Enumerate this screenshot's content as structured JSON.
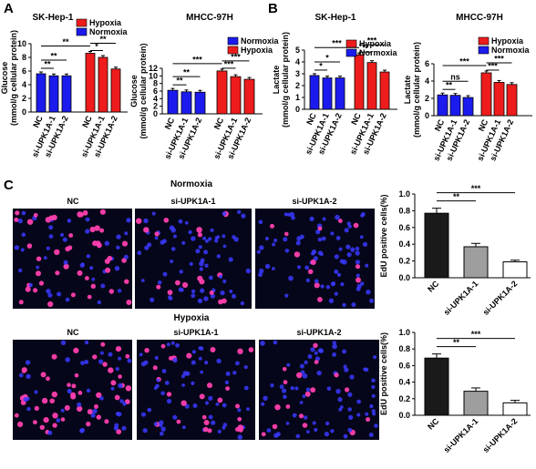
{
  "panels": {
    "a": "A",
    "b": "B",
    "c": "C"
  },
  "colors": {
    "hypoxia": "#ee1c1c",
    "normoxia": "#1b1bee",
    "nc_bar": "#1a1a1a",
    "kd1_bar": "#9e9e9e",
    "kd2_bar": "#ffffff",
    "cell_bg": "#06061a"
  },
  "chart_data": [
    {
      "type": "bar",
      "id": "a1",
      "title": "SK-Hep-1",
      "ylabel": "Glucose (mmol/g cellular protein)",
      "categories": [
        "NC",
        "si-UPK1A-1",
        "si-UPK1A-2"
      ],
      "ylim": [
        0,
        10
      ],
      "yticks": [
        "0",
        "2",
        "4",
        "6",
        "8",
        "10"
      ],
      "legend": [
        "Hypoxia",
        "Normoxia"
      ],
      "series": [
        {
          "name": "Normoxia",
          "values": [
            5.6,
            5.3,
            5.3
          ]
        },
        {
          "name": "Hypoxia",
          "values": [
            8.6,
            8.0,
            6.3
          ]
        }
      ],
      "significance": [
        "**",
        "**",
        "**",
        "*",
        "**"
      ]
    },
    {
      "type": "bar",
      "id": "a2",
      "title": "MHCC-97H",
      "ylabel": "Glucose (mmol/g cellular protein)",
      "categories": [
        "NC",
        "si-UPK1A-1",
        "si-UPK1A-2"
      ],
      "ylim": [
        0,
        12
      ],
      "yticks": [
        "0",
        "2",
        "4",
        "6",
        "8",
        "10",
        "12"
      ],
      "legend": [
        "Normoxia",
        "Hypoxia"
      ],
      "series": [
        {
          "name": "Normoxia",
          "values": [
            6.2,
            5.8,
            5.7
          ]
        },
        {
          "name": "Hypoxia",
          "values": [
            11.3,
            9.8,
            9.1
          ]
        }
      ],
      "significance": [
        "***",
        "**",
        "**",
        "***",
        "***"
      ]
    },
    {
      "type": "bar",
      "id": "b1",
      "title": "SK-Hep-1",
      "ylabel": "Lactate (mmol/g cellular protein)",
      "categories": [
        "NC",
        "si-UPK1A-1",
        "si-UPK1A-2"
      ],
      "ylim": [
        0,
        5
      ],
      "yticks": [
        "0",
        "1",
        "2",
        "3",
        "4",
        "5"
      ],
      "legend": [
        "Hypoxia",
        "Normoxia"
      ],
      "series": [
        {
          "name": "Normoxia",
          "values": [
            2.85,
            2.65,
            2.65
          ]
        },
        {
          "name": "Hypoxia",
          "values": [
            4.6,
            3.95,
            3.15
          ]
        }
      ],
      "significance": [
        "***",
        "*",
        "*",
        "**",
        "***"
      ]
    },
    {
      "type": "bar",
      "id": "b2",
      "title": "MHCC-97H",
      "ylabel": "Lactate (mmol/g cellular protein)",
      "categories": [
        "NC",
        "si-UPK1A-1",
        "si-UPK1A-2"
      ],
      "ylim": [
        0,
        6
      ],
      "yticks": [
        "0",
        "2",
        "4",
        "6"
      ],
      "legend": [
        "Hypoxia",
        "Normoxia"
      ],
      "series": [
        {
          "name": "Normoxia",
          "values": [
            2.4,
            2.35,
            2.1
          ]
        },
        {
          "name": "Hypoxia",
          "values": [
            4.95,
            3.85,
            3.6
          ]
        }
      ],
      "significance": [
        "***",
        "**",
        "ns",
        "***",
        "***"
      ]
    },
    {
      "type": "bar",
      "id": "c1",
      "ylabel": "EdU positive cells(%)",
      "categories": [
        "NC",
        "si-UPK1A-1",
        "si-UPK1A-2"
      ],
      "ylim": [
        0,
        1.0
      ],
      "yticks": [
        "0.0",
        "0.2",
        "0.4",
        "0.6",
        "0.8",
        "1.0"
      ],
      "values": [
        0.77,
        0.37,
        0.19
      ],
      "errors": [
        0.06,
        0.04,
        0.02
      ],
      "significance": [
        "**",
        "***"
      ]
    },
    {
      "type": "bar",
      "id": "c2",
      "ylabel": "EdU positive cells(%)",
      "categories": [
        "NC",
        "si-UPK1A-1",
        "si-UPK1A-2"
      ],
      "ylim": [
        0,
        1.0
      ],
      "yticks": [
        "0.0",
        "0.2",
        "0.4",
        "0.6",
        "0.8",
        "1.0"
      ],
      "values": [
        0.69,
        0.29,
        0.15
      ],
      "errors": [
        0.05,
        0.04,
        0.03
      ],
      "significance": [
        "**",
        "***"
      ]
    }
  ],
  "micrographs": {
    "normoxia_title": "Normoxia",
    "hypoxia_title": "Hypoxia",
    "labels": [
      "NC",
      "si-UPK1A-1",
      "si-UPK1A-2"
    ]
  }
}
